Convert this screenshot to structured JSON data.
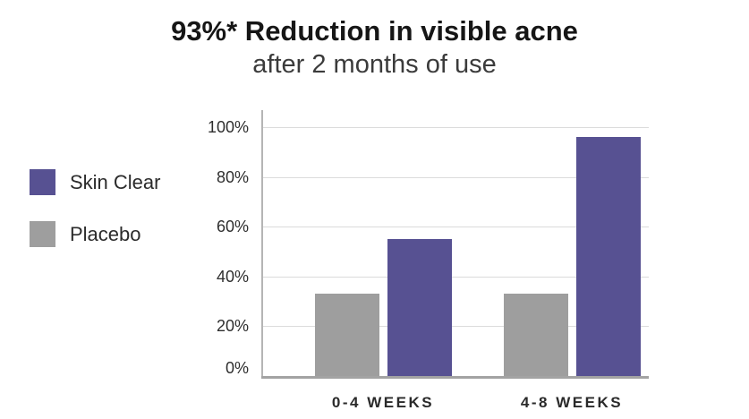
{
  "title": "93%* Reduction in visible acne",
  "subtitle": "after 2 months of use",
  "legend": {
    "items": [
      {
        "label": "Skin Clear",
        "color": "#575192"
      },
      {
        "label": "Placebo",
        "color": "#9e9e9e"
      }
    ]
  },
  "colors": {
    "skin_clear_bar": "#575192",
    "placebo_bar": "#9e9e9e",
    "gridline": "#dbdbdb",
    "axis": "#a3a3a3",
    "title_text": "#161616",
    "subtitle_text": "#3b3b3b"
  },
  "chart_data": {
    "type": "bar",
    "title": "93%* Reduction in visible acne",
    "subtitle": "after 2 months of use",
    "categories": [
      "0-4 WEEKS",
      "4-8 WEEKS"
    ],
    "series": [
      {
        "name": "Placebo",
        "color": "#9e9e9e",
        "values": [
          33,
          33
        ]
      },
      {
        "name": "Skin Clear",
        "color": "#575192",
        "values": [
          55,
          96
        ]
      }
    ],
    "xlabel": "",
    "ylabel": "",
    "ylim": [
      0,
      100
    ],
    "yticks": [
      0,
      20,
      40,
      60,
      80,
      100
    ],
    "ytick_labels": [
      "0%",
      "20%",
      "40%",
      "60%",
      "80%",
      "100%"
    ],
    "grid": true,
    "legend_position": "left",
    "bar_order_in_group_left_to_right": [
      "Placebo",
      "Skin Clear"
    ]
  }
}
